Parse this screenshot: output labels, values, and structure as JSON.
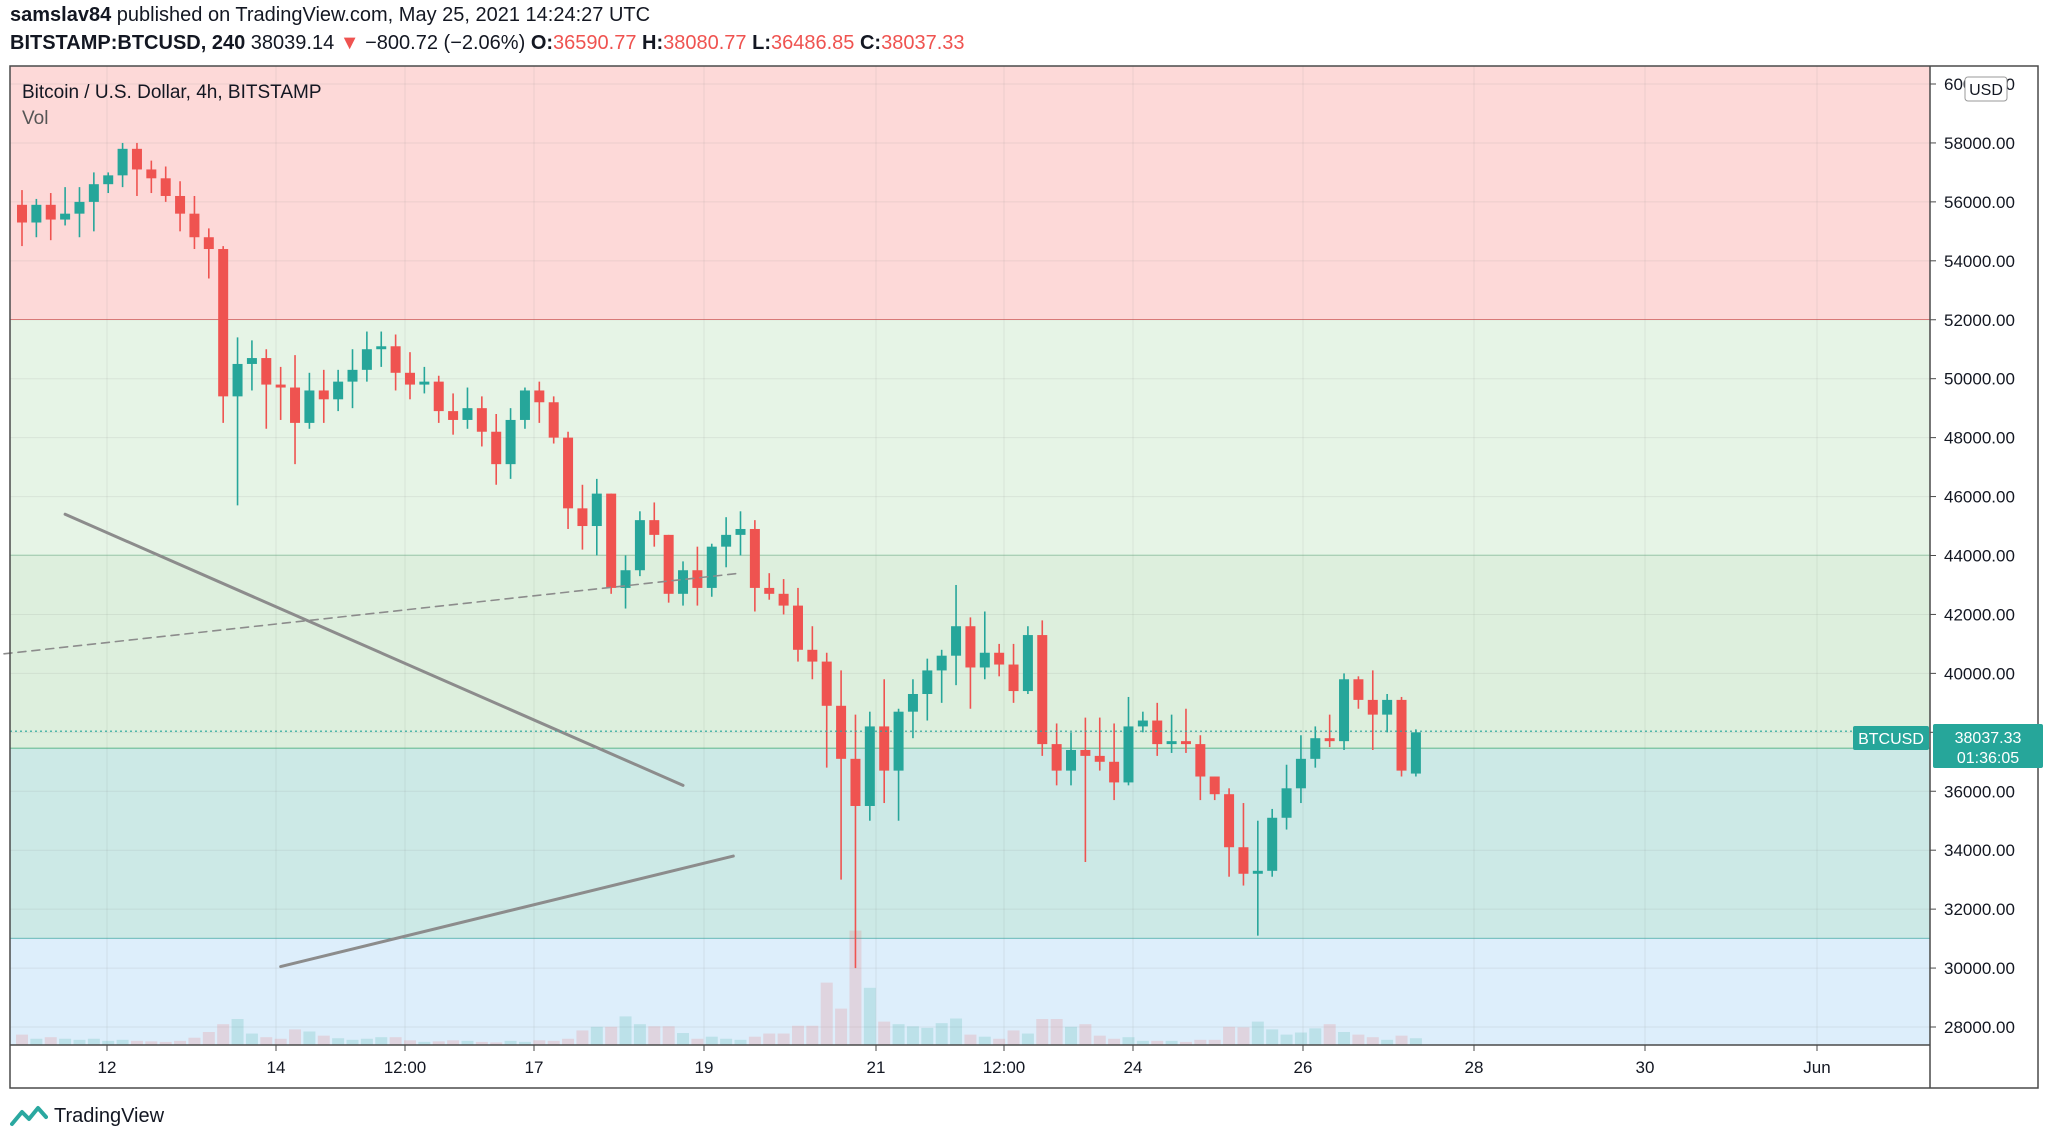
{
  "header": {
    "publisher": "samslav84",
    "published_on": "published on TradingView.com, May 25, 2021 14:24:27 UTC",
    "symbol": "BITSTAMP:BTCUSD, 240",
    "last": "38039.14",
    "change": "−800.72 (−2.06%)",
    "o_label": "O:",
    "o_val": "36590.77",
    "h_label": "H:",
    "h_val": "38080.77",
    "l_label": "L:",
    "l_val": "36486.85",
    "c_label": "C:",
    "c_val": "38037.33"
  },
  "legend": {
    "title": "Bitcoin / U.S. Dollar, 4h, BITSTAMP",
    "vol": "Vol"
  },
  "currency": "USD",
  "price_tag": {
    "symbol": "BTCUSD",
    "price": "38037.33",
    "countdown": "01:36:05"
  },
  "footer": {
    "brand": "TradingView"
  },
  "colors": {
    "up": "#26a69a",
    "down": "#ef5350",
    "zone_red": "#fdd9d8",
    "zone_green": "#e6f4e6",
    "zone_teal": "#cce9e6",
    "zone_blue": "#ddeefb"
  },
  "chart_data": {
    "type": "candlestick",
    "x_axis_ticks": [
      "12",
      "14",
      "12:00",
      "17",
      "19",
      "21",
      "12:00",
      "24",
      "26",
      "28",
      "30",
      "Jun"
    ],
    "y_axis_ticks": [
      "60000.00",
      "58000.00",
      "56000.00",
      "54000.00",
      "52000.00",
      "50000.00",
      "48000.00",
      "46000.00",
      "44000.00",
      "42000.00",
      "40000.00",
      "38000.00",
      "36000.00",
      "34000.00",
      "32000.00",
      "30000.00",
      "28000.00"
    ],
    "ylim": [
      27400,
      61400
    ],
    "zones": [
      {
        "from": 52000,
        "to": 61400,
        "color": "#fdd9d8",
        "line": "#e05555"
      },
      {
        "from": 44000,
        "to": 52000,
        "color": "#e6f4e6",
        "line": "#88c8a0"
      },
      {
        "from": 37450,
        "to": 44000,
        "color": "#ddefdd",
        "line": "#3fa873"
      },
      {
        "from": 31000,
        "to": 37450,
        "color": "#cce9e6",
        "line": "#3aa39d"
      },
      {
        "from": 27400,
        "to": 31000,
        "color": "#ddeefb",
        "line": null
      }
    ],
    "trendlines": [
      {
        "style": "solid",
        "points": [
          [
            3.0,
            45400
          ],
          [
            46.0,
            36200
          ]
        ]
      },
      {
        "style": "solid",
        "points": [
          [
            18.0,
            30050
          ],
          [
            49.5,
            33800
          ]
        ]
      },
      {
        "style": "dashed",
        "points": [
          [
            -9.0,
            40250
          ],
          [
            50.0,
            43400
          ]
        ]
      }
    ],
    "current_price": 38037.33,
    "candles": [
      [
        55900,
        56400,
        54500,
        55300
      ],
      [
        55300,
        56100,
        54800,
        55900
      ],
      [
        55900,
        56300,
        54700,
        55400
      ],
      [
        55400,
        56500,
        55200,
        55600
      ],
      [
        55600,
        56500,
        54800,
        56000
      ],
      [
        56000,
        57000,
        55000,
        56600
      ],
      [
        56600,
        57000,
        56300,
        56900
      ],
      [
        56900,
        58000,
        56500,
        57800
      ],
      [
        57800,
        58000,
        56200,
        57100
      ],
      [
        57100,
        57400,
        56300,
        56800
      ],
      [
        56800,
        57200,
        56000,
        56200
      ],
      [
        56200,
        56700,
        55000,
        55600
      ],
      [
        55600,
        56200,
        54400,
        54800
      ],
      [
        54800,
        55100,
        53400,
        54400
      ],
      [
        54400,
        54500,
        48500,
        49400
      ],
      [
        49400,
        51400,
        45700,
        50500
      ],
      [
        50500,
        51300,
        49600,
        50700
      ],
      [
        50700,
        51000,
        48300,
        49800
      ],
      [
        49800,
        50400,
        48600,
        49700
      ],
      [
        49700,
        50800,
        47100,
        48500
      ],
      [
        48500,
        50200,
        48300,
        49600
      ],
      [
        49600,
        50300,
        48500,
        49300
      ],
      [
        49300,
        50300,
        48900,
        49900
      ],
      [
        49900,
        51000,
        49000,
        50300
      ],
      [
        50300,
        51600,
        49900,
        51000
      ],
      [
        51000,
        51600,
        50400,
        51100
      ],
      [
        51100,
        51500,
        49600,
        50200
      ],
      [
        50200,
        50900,
        49300,
        49800
      ],
      [
        49800,
        50400,
        49500,
        49900
      ],
      [
        49900,
        50100,
        48500,
        48900
      ],
      [
        48900,
        49500,
        48100,
        48600
      ],
      [
        48600,
        49700,
        48300,
        49000
      ],
      [
        49000,
        49400,
        47700,
        48200
      ],
      [
        48200,
        48800,
        46400,
        47100
      ],
      [
        47100,
        49000,
        46600,
        48600
      ],
      [
        48600,
        49700,
        48300,
        49600
      ],
      [
        49600,
        49900,
        48500,
        49200
      ],
      [
        49200,
        49400,
        47800,
        48000
      ],
      [
        48000,
        48200,
        44900,
        45600
      ],
      [
        45600,
        46400,
        44200,
        45000
      ],
      [
        45000,
        46600,
        44000,
        46100
      ],
      [
        46100,
        46100,
        42700,
        42900
      ],
      [
        42900,
        44000,
        42200,
        43500
      ],
      [
        43500,
        45500,
        43300,
        45200
      ],
      [
        45200,
        45800,
        44300,
        44700
      ],
      [
        44700,
        44700,
        42400,
        42700
      ],
      [
        42700,
        43800,
        42300,
        43500
      ],
      [
        43500,
        44300,
        42300,
        42900
      ],
      [
        42900,
        44400,
        42600,
        44300
      ],
      [
        44300,
        45300,
        43600,
        44700
      ],
      [
        44700,
        45500,
        44000,
        44900
      ],
      [
        44900,
        45200,
        42100,
        42900
      ],
      [
        42900,
        43400,
        42500,
        42700
      ],
      [
        42700,
        43200,
        42000,
        42300
      ],
      [
        42300,
        42900,
        40400,
        40800
      ],
      [
        40800,
        41600,
        39800,
        40400
      ],
      [
        40400,
        40700,
        36800,
        38900
      ],
      [
        38900,
        40100,
        33000,
        37100
      ],
      [
        37100,
        38600,
        30000,
        35500
      ],
      [
        35500,
        38700,
        35000,
        38200
      ],
      [
        38200,
        39800,
        35600,
        36700
      ],
      [
        36700,
        38800,
        35000,
        38700
      ],
      [
        38700,
        39800,
        37800,
        39300
      ],
      [
        39300,
        40500,
        38400,
        40100
      ],
      [
        40100,
        40800,
        39000,
        40600
      ],
      [
        40600,
        43000,
        39600,
        41600
      ],
      [
        41600,
        41900,
        38800,
        40200
      ],
      [
        40200,
        42100,
        39800,
        40700
      ],
      [
        40700,
        41000,
        39900,
        40300
      ],
      [
        40300,
        41000,
        39000,
        39400
      ],
      [
        39400,
        41600,
        39300,
        41300
      ],
      [
        41300,
        41800,
        37200,
        37600
      ],
      [
        37600,
        38300,
        36200,
        36700
      ],
      [
        36700,
        38000,
        36200,
        37400
      ],
      [
        37400,
        38500,
        33600,
        37200
      ],
      [
        37200,
        38500,
        36700,
        37000
      ],
      [
        37000,
        38300,
        35700,
        36300
      ],
      [
        36300,
        39200,
        36200,
        38200
      ],
      [
        38200,
        38700,
        38000,
        38400
      ],
      [
        38400,
        39000,
        37200,
        37600
      ],
      [
        37600,
        38600,
        37300,
        37700
      ],
      [
        37700,
        38800,
        37300,
        37600
      ],
      [
        37600,
        37900,
        35700,
        36500
      ],
      [
        36500,
        36500,
        35700,
        35900
      ],
      [
        35900,
        36100,
        33100,
        34100
      ],
      [
        34100,
        35600,
        32800,
        33200
      ],
      [
        33200,
        35000,
        31100,
        33300
      ],
      [
        33300,
        35400,
        33100,
        35100
      ],
      [
        35100,
        36900,
        34700,
        36100
      ],
      [
        36100,
        37900,
        35600,
        37100
      ],
      [
        37100,
        38200,
        36800,
        37800
      ],
      [
        37800,
        38600,
        37500,
        37700
      ],
      [
        37700,
        40000,
        37400,
        39800
      ],
      [
        39800,
        39900,
        38800,
        39100
      ],
      [
        39100,
        40100,
        37400,
        38600
      ],
      [
        38600,
        39300,
        38000,
        39100
      ],
      [
        39100,
        39200,
        36500,
        36700
      ],
      [
        36600,
        38100,
        36500,
        38000
      ]
    ],
    "volumes": [
      2.0,
      1.2,
      1.5,
      1.2,
      1.0,
      1.2,
      0.8,
      1.0,
      0.8,
      0.7,
      0.6,
      0.8,
      1.4,
      2.5,
      4.0,
      5.0,
      2.2,
      1.5,
      1.2,
      3.0,
      2.6,
      1.8,
      1.3,
      1.0,
      1.2,
      1.5,
      1.5,
      0.9,
      0.6,
      0.7,
      0.9,
      0.8,
      0.6,
      0.5,
      0.8,
      0.6,
      0.9,
      0.8,
      1.2,
      2.8,
      3.5,
      3.5,
      5.5,
      4.0,
      3.6,
      3.6,
      2.3,
      1.2,
      1.6,
      1.2,
      1.0,
      1.6,
      2.2,
      2.2,
      3.7,
      3.7,
      12.0,
      7.0,
      22.0,
      11.0,
      4.5,
      4.0,
      3.6,
      3.3,
      4.2,
      5.1,
      2.0,
      1.6,
      1.2,
      2.8,
      2.2,
      5.0,
      5.0,
      3.5,
      4.0,
      1.8,
      1.2,
      1.5,
      0.8,
      0.8,
      0.8,
      0.6,
      1.0,
      1.0,
      3.5,
      3.4,
      4.5,
      3.0,
      2.0,
      2.4,
      3.2,
      4.0,
      2.5,
      2.0,
      1.5,
      1.0,
      1.8,
      1.3
    ]
  }
}
